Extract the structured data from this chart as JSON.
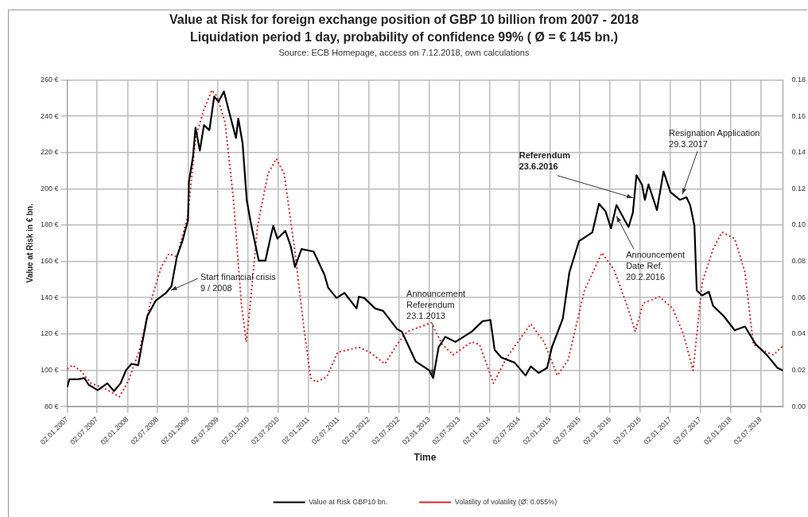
{
  "chart_data": {
    "type": "line",
    "title": "Value at Risk for foreign exchange position of GBP 10 billion from 2007 - 2018",
    "subtitle": "Liquidation period 1 day, probability of confidence 99% ( Ø = € 145 bn.)",
    "xlabel": "Time",
    "ylabel": "Value at Risk in € bn.",
    "xlim": [
      "2007-01-02",
      "2018-11-14"
    ],
    "xticks": [
      {
        "value": "2007-01-02",
        "label": "02.01.2007"
      },
      {
        "value": "2007-07-02",
        "label": "02.07.2007"
      },
      {
        "value": "2008-01-02",
        "label": "02.01.2008"
      },
      {
        "value": "2008-07-02",
        "label": "02.07.2008"
      },
      {
        "value": "2009-01-02",
        "label": "02.01.2009"
      },
      {
        "value": "2009-07-02",
        "label": "02.07.2009"
      },
      {
        "value": "2010-01-02",
        "label": "02.01.2010"
      },
      {
        "value": "2010-07-02",
        "label": "02.07.2010"
      },
      {
        "value": "2011-01-02",
        "label": "02.01.2011"
      },
      {
        "value": "2011-07-02",
        "label": "02.07.2011"
      },
      {
        "value": "2012-01-02",
        "label": "02.01.2012"
      },
      {
        "value": "2012-07-02",
        "label": "02.07.2012"
      },
      {
        "value": "2013-01-02",
        "label": "02.01.2013"
      },
      {
        "value": "2013-07-02",
        "label": "02.07.2013"
      },
      {
        "value": "2014-01-02",
        "label": "02.01.2014"
      },
      {
        "value": "2014-07-02",
        "label": "02.07.2014"
      },
      {
        "value": "2015-01-02",
        "label": "02.01.2015"
      },
      {
        "value": "2015-07-02",
        "label": "02.07.2015"
      },
      {
        "value": "2016-01-02",
        "label": "02.01.2016"
      },
      {
        "value": "2016-07-02",
        "label": "02.07.2016"
      },
      {
        "value": "2017-01-02",
        "label": "02.01.2017"
      },
      {
        "value": "2017-07-02",
        "label": "02.07.2017"
      },
      {
        "value": "2018-01-02",
        "label": "02.01.2018"
      },
      {
        "value": "2018-07-02",
        "label": "02.07.2018"
      }
    ],
    "ylim": [
      80,
      260
    ],
    "yticks": [
      {
        "value": 80,
        "label": "80 €"
      },
      {
        "value": 100,
        "label": "100 €"
      },
      {
        "value": 120,
        "label": "120 €"
      },
      {
        "value": 140,
        "label": "140 €"
      },
      {
        "value": 160,
        "label": "160 €"
      },
      {
        "value": 180,
        "label": "180 €"
      },
      {
        "value": 200,
        "label": "200 €"
      },
      {
        "value": 220,
        "label": "220 €"
      },
      {
        "value": 240,
        "label": "240 €"
      },
      {
        "value": 260,
        "label": "260 €"
      }
    ],
    "y2lim": [
      0,
      0.18
    ],
    "y2ticks": [
      {
        "value": 0,
        "label": "0.00"
      },
      {
        "value": 0.02,
        "label": "0.02"
      },
      {
        "value": 0.04,
        "label": "0.04"
      },
      {
        "value": 0.06,
        "label": "0.06"
      },
      {
        "value": 0.08,
        "label": "0.08"
      },
      {
        "value": 0.1,
        "label": "0.10"
      },
      {
        "value": 0.12,
        "label": "0.12"
      },
      {
        "value": 0.14,
        "label": "0.14"
      },
      {
        "value": 0.16,
        "label": "0.16"
      },
      {
        "value": 0.18,
        "label": "0.18"
      }
    ],
    "grid": true,
    "legend": "bottom",
    "marker": "none",
    "series": [
      {
        "name": "Value at Risk GBP10 bn.",
        "color": "#000000",
        "line_style": "solid",
        "x": [
          "2007-01-02",
          "2007-01-15",
          "2007-03-07",
          "2007-04-16",
          "2007-05-12",
          "2007-07-06",
          "2007-09-02",
          "2007-10-12",
          "2007-11-21",
          "2007-12-24",
          "2008-01-26",
          "2008-03-07",
          "2008-03-29",
          "2008-05-01",
          "2008-06-21",
          "2008-08-22",
          "2008-09-24",
          "2008-10-27",
          "2008-11-29",
          "2009-01-02",
          "2009-01-08",
          "2009-02-02",
          "2009-02-17",
          "2009-03-15",
          "2009-04-09",
          "2009-05-12",
          "2009-06-10",
          "2009-07-06",
          "2009-08-08",
          "2009-09-17",
          "2009-10-20",
          "2009-11-03",
          "2009-11-29",
          "2009-12-24",
          "2010-01-15",
          "2010-02-10",
          "2010-03-07",
          "2010-04-16",
          "2010-05-19",
          "2010-06-03",
          "2010-06-28",
          "2010-08-15",
          "2010-09-17",
          "2010-10-12",
          "2010-11-21",
          "2011-02-02",
          "2011-04-09",
          "2011-05-01",
          "2011-06-21",
          "2011-08-08",
          "2011-10-20",
          "2011-11-03",
          "2011-12-06",
          "2012-02-10",
          "2012-03-29",
          "2012-06-21",
          "2012-07-20",
          "2012-10-12",
          "2013-01-02",
          "2013-01-26",
          "2013-02-28",
          "2013-04-09",
          "2013-06-10",
          "2013-09-17",
          "2013-11-21",
          "2014-01-08",
          "2014-02-02",
          "2014-03-15",
          "2014-06-03",
          "2014-08-08",
          "2014-09-09",
          "2014-10-27",
          "2014-12-17",
          "2015-01-15",
          "2015-03-22",
          "2015-05-01",
          "2015-06-28",
          "2015-09-17",
          "2015-10-27",
          "2015-12-06",
          "2016-01-08",
          "2016-02-10",
          "2016-03-15",
          "2016-04-23",
          "2016-05-19",
          "2016-06-10",
          "2016-07-13",
          "2016-07-31",
          "2016-08-22",
          "2016-10-12",
          "2016-11-21",
          "2017-01-02",
          "2017-02-28",
          "2017-04-09",
          "2017-05-01",
          "2017-05-27",
          "2017-06-10",
          "2017-07-13",
          "2017-08-22",
          "2017-09-17",
          "2017-11-21",
          "2018-01-26",
          "2018-03-29",
          "2018-06-03",
          "2018-08-08",
          "2018-10-12",
          "2018-11-14"
        ],
        "values": [
          90.7,
          95,
          95,
          95.7,
          92,
          89,
          92.8,
          88.5,
          92.8,
          100,
          103.5,
          102.8,
          114,
          129.8,
          138.4,
          142.6,
          146.2,
          162.5,
          171,
          182.5,
          203.8,
          218,
          233.7,
          221,
          235,
          232.3,
          250.8,
          248,
          253.6,
          239.4,
          228,
          238.7,
          225,
          193.9,
          182.5,
          171,
          160.4,
          160.4,
          174,
          179.6,
          172.5,
          176.8,
          168.2,
          156.9,
          166.8,
          165.4,
          152.6,
          145.5,
          139.8,
          142.6,
          134,
          140.5,
          139.8,
          134,
          132.7,
          122.7,
          121.3,
          104.9,
          99.9,
          95.7,
          112.7,
          118.4,
          115.6,
          121.3,
          127,
          127.7,
          111.3,
          107,
          104.2,
          97.1,
          102.1,
          98.5,
          101.3,
          112.7,
          128.4,
          154,
          171.1,
          176,
          191.7,
          187.5,
          178.2,
          191,
          185.3,
          178.9,
          186.7,
          207.4,
          202.4,
          193.9,
          202.4,
          188.2,
          209.5,
          198.1,
          193.9,
          195.3,
          191,
          179.6,
          144,
          141.2,
          143.3,
          135.5,
          129.8,
          122,
          124.1,
          114.2,
          108.5,
          101.3,
          99.9
        ]
      },
      {
        "name": "Volatility of volatility (Ø: 0.055%)",
        "color": "#d62728",
        "line_style": "dotted",
        "axis": "y2",
        "x": [
          "2007-01-02",
          "2007-02-02",
          "2007-03-22",
          "2007-05-27",
          "2007-08-15",
          "2007-11-14",
          "2008-01-08",
          "2008-03-15",
          "2008-05-19",
          "2008-07-24",
          "2008-09-09",
          "2008-10-27",
          "2009-01-02",
          "2009-02-17",
          "2009-04-09",
          "2009-05-27",
          "2009-06-28",
          "2009-08-15",
          "2009-10-05",
          "2009-11-21",
          "2009-12-21",
          "2010-01-15",
          "2010-02-28",
          "2010-05-01",
          "2010-06-21",
          "2010-08-08",
          "2010-10-12",
          "2010-12-06",
          "2011-01-15",
          "2011-02-17",
          "2011-04-23",
          "2011-06-28",
          "2011-09-02",
          "2011-11-03",
          "2012-01-08",
          "2012-04-09",
          "2012-06-21",
          "2012-08-22",
          "2013-01-15",
          "2013-03-22",
          "2013-05-27",
          "2013-09-17",
          "2013-11-03",
          "2014-01-26",
          "2014-04-16",
          "2014-09-09",
          "2014-11-29",
          "2015-02-17",
          "2015-04-23",
          "2015-07-31",
          "2015-11-14",
          "2016-01-26",
          "2016-04-09",
          "2016-06-03",
          "2016-07-20",
          "2016-10-27",
          "2017-01-15",
          "2017-03-22",
          "2017-05-19",
          "2017-07-13",
          "2017-09-17",
          "2017-11-10",
          "2018-01-26",
          "2018-03-29",
          "2018-05-19",
          "2018-08-08",
          "2018-09-17",
          "2018-11-14"
        ],
        "values": [
          0.0206,
          0.0228,
          0.0199,
          0.0128,
          0.01,
          0.0054,
          0.0142,
          0.0313,
          0.0569,
          0.0768,
          0.0842,
          0.0825,
          0.1053,
          0.148,
          0.1637,
          0.1743,
          0.1708,
          0.1565,
          0.1138,
          0.0569,
          0.0356,
          0.0569,
          0.0996,
          0.1281,
          0.1366,
          0.1281,
          0.0854,
          0.0427,
          0.0157,
          0.0135,
          0.0164,
          0.0299,
          0.0313,
          0.0327,
          0.0299,
          0.0235,
          0.0342,
          0.0413,
          0.0462,
          0.0342,
          0.0285,
          0.0356,
          0.0342,
          0.0128,
          0.027,
          0.0455,
          0.0356,
          0.0171,
          0.0256,
          0.064,
          0.0847,
          0.0754,
          0.0569,
          0.0413,
          0.0569,
          0.0605,
          0.0541,
          0.0398,
          0.0199,
          0.0683,
          0.0868,
          0.0961,
          0.0925,
          0.074,
          0.0342,
          0.0299,
          0.0285,
          0.0334
        ]
      }
    ],
    "annotations": [
      "Source: ECB Homepage, access on 7.12.2018, own calculations",
      {
        "text": "Start financial crisis\n9 / 2008",
        "x": "2008-09-21",
        "y": 144
      },
      {
        "text": "Announcement\nReferendum\n23.1.2013",
        "x": "2013-01-23",
        "y": 97
      },
      {
        "text": "Referendum\n23.6.2016",
        "x": "2016-05-19",
        "y": 195
      },
      {
        "text": "Announcement\nDate Ref.\n20.2.2016",
        "x": "2016-02-10",
        "y": 185
      },
      {
        "text": "Resignation Application\n29.3.2017",
        "x": "2017-03-15",
        "y": 197
      }
    ]
  }
}
